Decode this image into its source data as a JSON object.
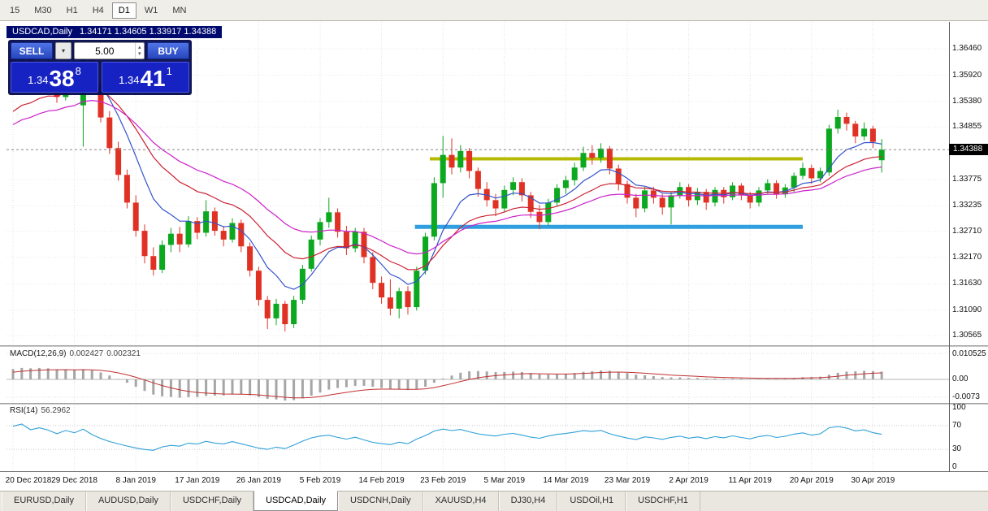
{
  "toolbar": {
    "timeframes": [
      {
        "label": "15",
        "active": false
      },
      {
        "label": "M30",
        "active": false
      },
      {
        "label": "H1",
        "active": false
      },
      {
        "label": "H4",
        "active": false
      },
      {
        "label": "D1",
        "active": true
      },
      {
        "label": "W1",
        "active": false
      },
      {
        "label": "MN",
        "active": false
      }
    ]
  },
  "chart": {
    "symbol_title": "USDCAD,Daily",
    "ohlc_text": "1.34171 1.34605 1.33917 1.34388"
  },
  "trade_panel": {
    "sell_label": "SELL",
    "buy_label": "BUY",
    "lot_value": "5.00",
    "dropdown_glyph": "▾",
    "spin_up_glyph": "▴",
    "spin_down_glyph": "▾",
    "sell_price": {
      "prefix": "1.34",
      "big": "38",
      "sup": "8"
    },
    "buy_price": {
      "prefix": "1.34",
      "big": "41",
      "sup": "1"
    }
  },
  "price_scale": {
    "labels": [
      "1.36460",
      "1.35920",
      "1.35380",
      "1.34855",
      "1.33775",
      "1.33235",
      "1.32710",
      "1.32170",
      "1.31630",
      "1.31090",
      "1.30565"
    ],
    "current_price": "1.34388"
  },
  "indicators": {
    "macd": {
      "label": "MACD(12,26,9)",
      "value_main": "0.002427",
      "value_signal": "0.002321",
      "scale": [
        "0.010525",
        "0.00",
        "-0.0073"
      ]
    },
    "rsi": {
      "label": "RSI(14)",
      "value": "56.2962",
      "scale": [
        "100",
        "70",
        "30",
        "0"
      ]
    }
  },
  "time_axis": [
    "20 Dec 2018",
    "29 Dec 2018",
    "8 Jan 2019",
    "17 Jan 2019",
    "26 Jan 2019",
    "5 Feb 2019",
    "14 Feb 2019",
    "23 Feb 2019",
    "5 Mar 2019",
    "14 Mar 2019",
    "23 Mar 2019",
    "2 Apr 2019",
    "11 Apr 2019",
    "20 Apr 2019",
    "30 Apr 2019"
  ],
  "bottom_tabs": [
    {
      "label": "EURUSD,Daily",
      "active": false
    },
    {
      "label": "AUDUSD,Daily",
      "active": false
    },
    {
      "label": "USDCHF,Daily",
      "active": false
    },
    {
      "label": "USDCAD,Daily",
      "active": true
    },
    {
      "label": "USDCNH,Daily",
      "active": false
    },
    {
      "label": "XAUUSD,H4",
      "active": false
    },
    {
      "label": "DJ30,H4",
      "active": false
    },
    {
      "label": "USDOil,H1",
      "active": false
    },
    {
      "label": "USDCHF,H1",
      "active": false
    }
  ],
  "chart_data": {
    "type": "candlestick",
    "symbol": "USDCAD",
    "timeframe": "Daily",
    "ylim": [
      1.304,
      1.3668
    ],
    "x_label_indices": [
      0,
      7,
      14,
      21,
      28,
      35,
      42,
      49,
      56,
      63,
      70,
      77,
      84,
      91,
      98
    ],
    "colors": {
      "up": "#0ca81f",
      "down": "#e03224",
      "macd_hist": "#a6a6a6",
      "macd_signal": "#c03030",
      "rsi_line": "#2da0d8",
      "grid": "#e2e2e2"
    },
    "candles": [
      [
        1.365,
        1.3664,
        1.3552,
        1.3585
      ],
      [
        1.3585,
        1.364,
        1.3575,
        1.3632
      ],
      [
        1.3632,
        1.3645,
        1.3565,
        1.3577
      ],
      [
        1.3577,
        1.3622,
        1.356,
        1.3615
      ],
      [
        1.3615,
        1.3628,
        1.3575,
        1.359
      ],
      [
        1.359,
        1.3598,
        1.3535,
        1.3547
      ],
      [
        1.3547,
        1.3612,
        1.354,
        1.3605
      ],
      [
        1.3605,
        1.3618,
        1.3568,
        1.3577
      ],
      [
        1.353,
        1.3655,
        1.3445,
        1.3648
      ],
      [
        1.3648,
        1.3652,
        1.356,
        1.3572
      ],
      [
        1.3572,
        1.358,
        1.3495,
        1.3505
      ],
      [
        1.3505,
        1.3518,
        1.343,
        1.3442
      ],
      [
        1.3442,
        1.3455,
        1.3375,
        1.3387
      ],
      [
        1.3387,
        1.3398,
        1.3318,
        1.333
      ],
      [
        1.333,
        1.3345,
        1.326,
        1.3272
      ],
      [
        1.3272,
        1.3285,
        1.3205,
        1.322
      ],
      [
        1.322,
        1.3238,
        1.318,
        1.3192
      ],
      [
        1.3192,
        1.3252,
        1.3185,
        1.3243
      ],
      [
        1.3243,
        1.3278,
        1.3228,
        1.3266
      ],
      [
        1.3266,
        1.328,
        1.3228,
        1.3244
      ],
      [
        1.3244,
        1.3302,
        1.3238,
        1.3292
      ],
      [
        1.3292,
        1.33,
        1.3255,
        1.3268
      ],
      [
        1.3268,
        1.3335,
        1.326,
        1.3312
      ],
      [
        1.3312,
        1.332,
        1.3262,
        1.3272
      ],
      [
        1.3272,
        1.3282,
        1.324,
        1.3254
      ],
      [
        1.3254,
        1.3298,
        1.3248,
        1.3288
      ],
      [
        1.3288,
        1.3295,
        1.3228,
        1.324
      ],
      [
        1.324,
        1.3248,
        1.3178,
        1.319
      ],
      [
        1.319,
        1.3198,
        1.3118,
        1.313
      ],
      [
        1.313,
        1.3138,
        1.307,
        1.3092
      ],
      [
        1.3092,
        1.3132,
        1.3078,
        1.3122
      ],
      [
        1.3122,
        1.3128,
        1.3065,
        1.308
      ],
      [
        1.308,
        1.3138,
        1.3072,
        1.313
      ],
      [
        1.313,
        1.3202,
        1.3122,
        1.3194
      ],
      [
        1.3194,
        1.3262,
        1.3188,
        1.3254
      ],
      [
        1.3254,
        1.3298,
        1.3242,
        1.329
      ],
      [
        1.329,
        1.334,
        1.3278,
        1.331
      ],
      [
        1.331,
        1.3318,
        1.3258,
        1.327
      ],
      [
        1.327,
        1.3282,
        1.3222,
        1.3236
      ],
      [
        1.3236,
        1.3278,
        1.3228,
        1.327
      ],
      [
        1.327,
        1.3278,
        1.3205,
        1.3218
      ],
      [
        1.3218,
        1.3228,
        1.3152,
        1.3165
      ],
      [
        1.3165,
        1.3178,
        1.3122,
        1.3135
      ],
      [
        1.3135,
        1.3172,
        1.3098,
        1.3112
      ],
      [
        1.3112,
        1.3155,
        1.3092,
        1.3148
      ],
      [
        1.3148,
        1.3158,
        1.31,
        1.3115
      ],
      [
        1.3115,
        1.3198,
        1.3108,
        1.319
      ],
      [
        1.319,
        1.3268,
        1.3182,
        1.326
      ],
      [
        1.326,
        1.3382,
        1.3252,
        1.337
      ],
      [
        1.337,
        1.3467,
        1.334,
        1.3428
      ],
      [
        1.3428,
        1.3462,
        1.3388,
        1.3402
      ],
      [
        1.3402,
        1.3448,
        1.3392,
        1.3436
      ],
      [
        1.3436,
        1.3442,
        1.338,
        1.3395
      ],
      [
        1.3395,
        1.3402,
        1.3342,
        1.3358
      ],
      [
        1.3358,
        1.3372,
        1.3322,
        1.3335
      ],
      [
        1.3335,
        1.3348,
        1.3302,
        1.3318
      ],
      [
        1.3318,
        1.3365,
        1.331,
        1.3356
      ],
      [
        1.3356,
        1.3382,
        1.3345,
        1.3372
      ],
      [
        1.3372,
        1.338,
        1.3332,
        1.3345
      ],
      [
        1.3345,
        1.3352,
        1.3298,
        1.3311
      ],
      [
        1.3311,
        1.3325,
        1.3275,
        1.329
      ],
      [
        1.329,
        1.3338,
        1.3282,
        1.333
      ],
      [
        1.333,
        1.3368,
        1.3322,
        1.336
      ],
      [
        1.336,
        1.3385,
        1.3348,
        1.3376
      ],
      [
        1.3376,
        1.3412,
        1.3365,
        1.3402
      ],
      [
        1.3402,
        1.3445,
        1.3395,
        1.3432
      ],
      [
        1.3432,
        1.3448,
        1.3408,
        1.3422
      ],
      [
        1.3422,
        1.3452,
        1.3412,
        1.3441
      ],
      [
        1.3441,
        1.3446,
        1.3388,
        1.34
      ],
      [
        1.34,
        1.3408,
        1.3355,
        1.3368
      ],
      [
        1.3368,
        1.3375,
        1.3328,
        1.334
      ],
      [
        1.334,
        1.3348,
        1.33,
        1.3318
      ],
      [
        1.3318,
        1.3362,
        1.331,
        1.3355
      ],
      [
        1.3355,
        1.3362,
        1.3328,
        1.334
      ],
      [
        1.334,
        1.3348,
        1.3305,
        1.332
      ],
      [
        1.332,
        1.3352,
        1.3285,
        1.3345
      ],
      [
        1.3345,
        1.3372,
        1.3338,
        1.3362
      ],
      [
        1.3362,
        1.3368,
        1.3322,
        1.3335
      ],
      [
        1.3335,
        1.336,
        1.3325,
        1.3352
      ],
      [
        1.3352,
        1.3358,
        1.3315,
        1.333
      ],
      [
        1.333,
        1.3362,
        1.3322,
        1.3356
      ],
      [
        1.3356,
        1.3362,
        1.3328,
        1.3341
      ],
      [
        1.3341,
        1.3372,
        1.3335,
        1.3365
      ],
      [
        1.3365,
        1.337,
        1.3335,
        1.3346
      ],
      [
        1.3346,
        1.3352,
        1.3318,
        1.333
      ],
      [
        1.333,
        1.3362,
        1.3322,
        1.3355
      ],
      [
        1.3355,
        1.3378,
        1.3348,
        1.337
      ],
      [
        1.337,
        1.3376,
        1.3338,
        1.3347
      ],
      [
        1.3347,
        1.3368,
        1.334,
        1.3361
      ],
      [
        1.3361,
        1.3392,
        1.3352,
        1.3385
      ],
      [
        1.3385,
        1.3412,
        1.3378,
        1.3401
      ],
      [
        1.3401,
        1.3408,
        1.3368,
        1.338
      ],
      [
        1.338,
        1.3402,
        1.3372,
        1.3395
      ],
      [
        1.3392,
        1.349,
        1.3385,
        1.3482
      ],
      [
        1.3482,
        1.3521,
        1.3472,
        1.3506
      ],
      [
        1.3506,
        1.3515,
        1.3478,
        1.3492
      ],
      [
        1.3492,
        1.3498,
        1.3452,
        1.3466
      ],
      [
        1.3466,
        1.3495,
        1.3458,
        1.3482
      ],
      [
        1.3482,
        1.3488,
        1.3442,
        1.3455
      ],
      [
        1.34171,
        1.34605,
        1.33917,
        1.34388
      ]
    ],
    "warmup_closes": [
      1.342,
      1.3395,
      1.344,
      1.3425,
      1.346,
      1.3445,
      1.348,
      1.347,
      1.351,
      1.3495,
      1.353,
      1.352,
      1.356,
      1.3545,
      1.359,
      1.361
    ],
    "overlays": {
      "resistance_line": {
        "color": "#b5b900",
        "price": 1.342,
        "from_index": 47.5,
        "to_index": 90,
        "width": 4
      },
      "support_line": {
        "color": "#2f9fdf",
        "price": 1.328,
        "from_index": 45.8,
        "to_index": 90,
        "width": 5
      },
      "bid_line_price": 1.34388,
      "moving_averages": [
        {
          "period": 8,
          "color": "#3352cc"
        },
        {
          "period": 17,
          "color": "#cc2233"
        },
        {
          "period": 28,
          "color": "#cc22cc"
        }
      ]
    },
    "macd": {
      "fast": 12,
      "slow": 26,
      "signal": 9
    },
    "rsi": {
      "period": 14,
      "levels": [
        70,
        30
      ]
    }
  }
}
